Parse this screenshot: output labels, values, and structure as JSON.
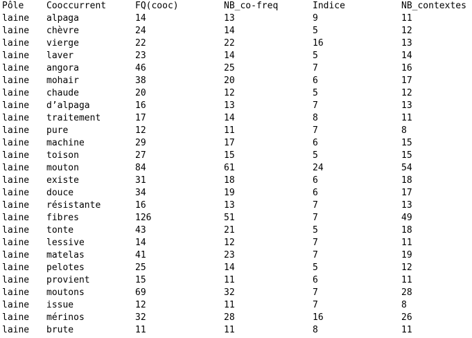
{
  "table": {
    "headers": [
      "Pôle",
      "Cooccurrent",
      "FQ(cooc)",
      "NB_co-freq",
      "Indice",
      "NB_contextes"
    ],
    "rows": [
      [
        "laine",
        "alpaga",
        "14",
        "13",
        "9",
        "11"
      ],
      [
        "laine",
        "chèvre",
        "24",
        "14",
        "5",
        "12"
      ],
      [
        "laine",
        "vierge",
        "22",
        "22",
        "16",
        "13"
      ],
      [
        "laine",
        "laver",
        "23",
        "14",
        "5",
        "14"
      ],
      [
        "laine",
        "angora",
        "46",
        "25",
        "7",
        "16"
      ],
      [
        "laine",
        "mohair",
        "38",
        "20",
        "6",
        "17"
      ],
      [
        "laine",
        "chaude",
        "20",
        "12",
        "5",
        "12"
      ],
      [
        "laine",
        "d’alpaga",
        "16",
        "13",
        "7",
        "13"
      ],
      [
        "laine",
        "traitement",
        "17",
        "14",
        "8",
        "11"
      ],
      [
        "laine",
        "pure",
        "12",
        "11",
        "7",
        "8"
      ],
      [
        "laine",
        "machine",
        "29",
        "17",
        "6",
        "15"
      ],
      [
        "laine",
        "toison",
        "27",
        "15",
        "5",
        "15"
      ],
      [
        "laine",
        "mouton",
        "84",
        "61",
        "24",
        "54"
      ],
      [
        "laine",
        "existe",
        "31",
        "18",
        "6",
        "18"
      ],
      [
        "laine",
        "douce",
        "34",
        "19",
        "6",
        "17"
      ],
      [
        "laine",
        "résistante",
        "16",
        "13",
        "7",
        "13"
      ],
      [
        "laine",
        "fibres",
        "126",
        "51",
        "7",
        "49"
      ],
      [
        "laine",
        "tonte",
        "43",
        "21",
        "5",
        "18"
      ],
      [
        "laine",
        "lessive",
        "14",
        "12",
        "7",
        "11"
      ],
      [
        "laine",
        "matelas",
        "41",
        "23",
        "7",
        "19"
      ],
      [
        "laine",
        "pelotes",
        "25",
        "14",
        "5",
        "12"
      ],
      [
        "laine",
        "provient",
        "15",
        "11",
        "6",
        "11"
      ],
      [
        "laine",
        "moutons",
        "69",
        "32",
        "7",
        "28"
      ],
      [
        "laine",
        "issue",
        "12",
        "11",
        "7",
        "8"
      ],
      [
        "laine",
        "mérinos",
        "32",
        "28",
        "16",
        "26"
      ],
      [
        "laine",
        "brute",
        "11",
        "11",
        "8",
        "11"
      ]
    ]
  }
}
